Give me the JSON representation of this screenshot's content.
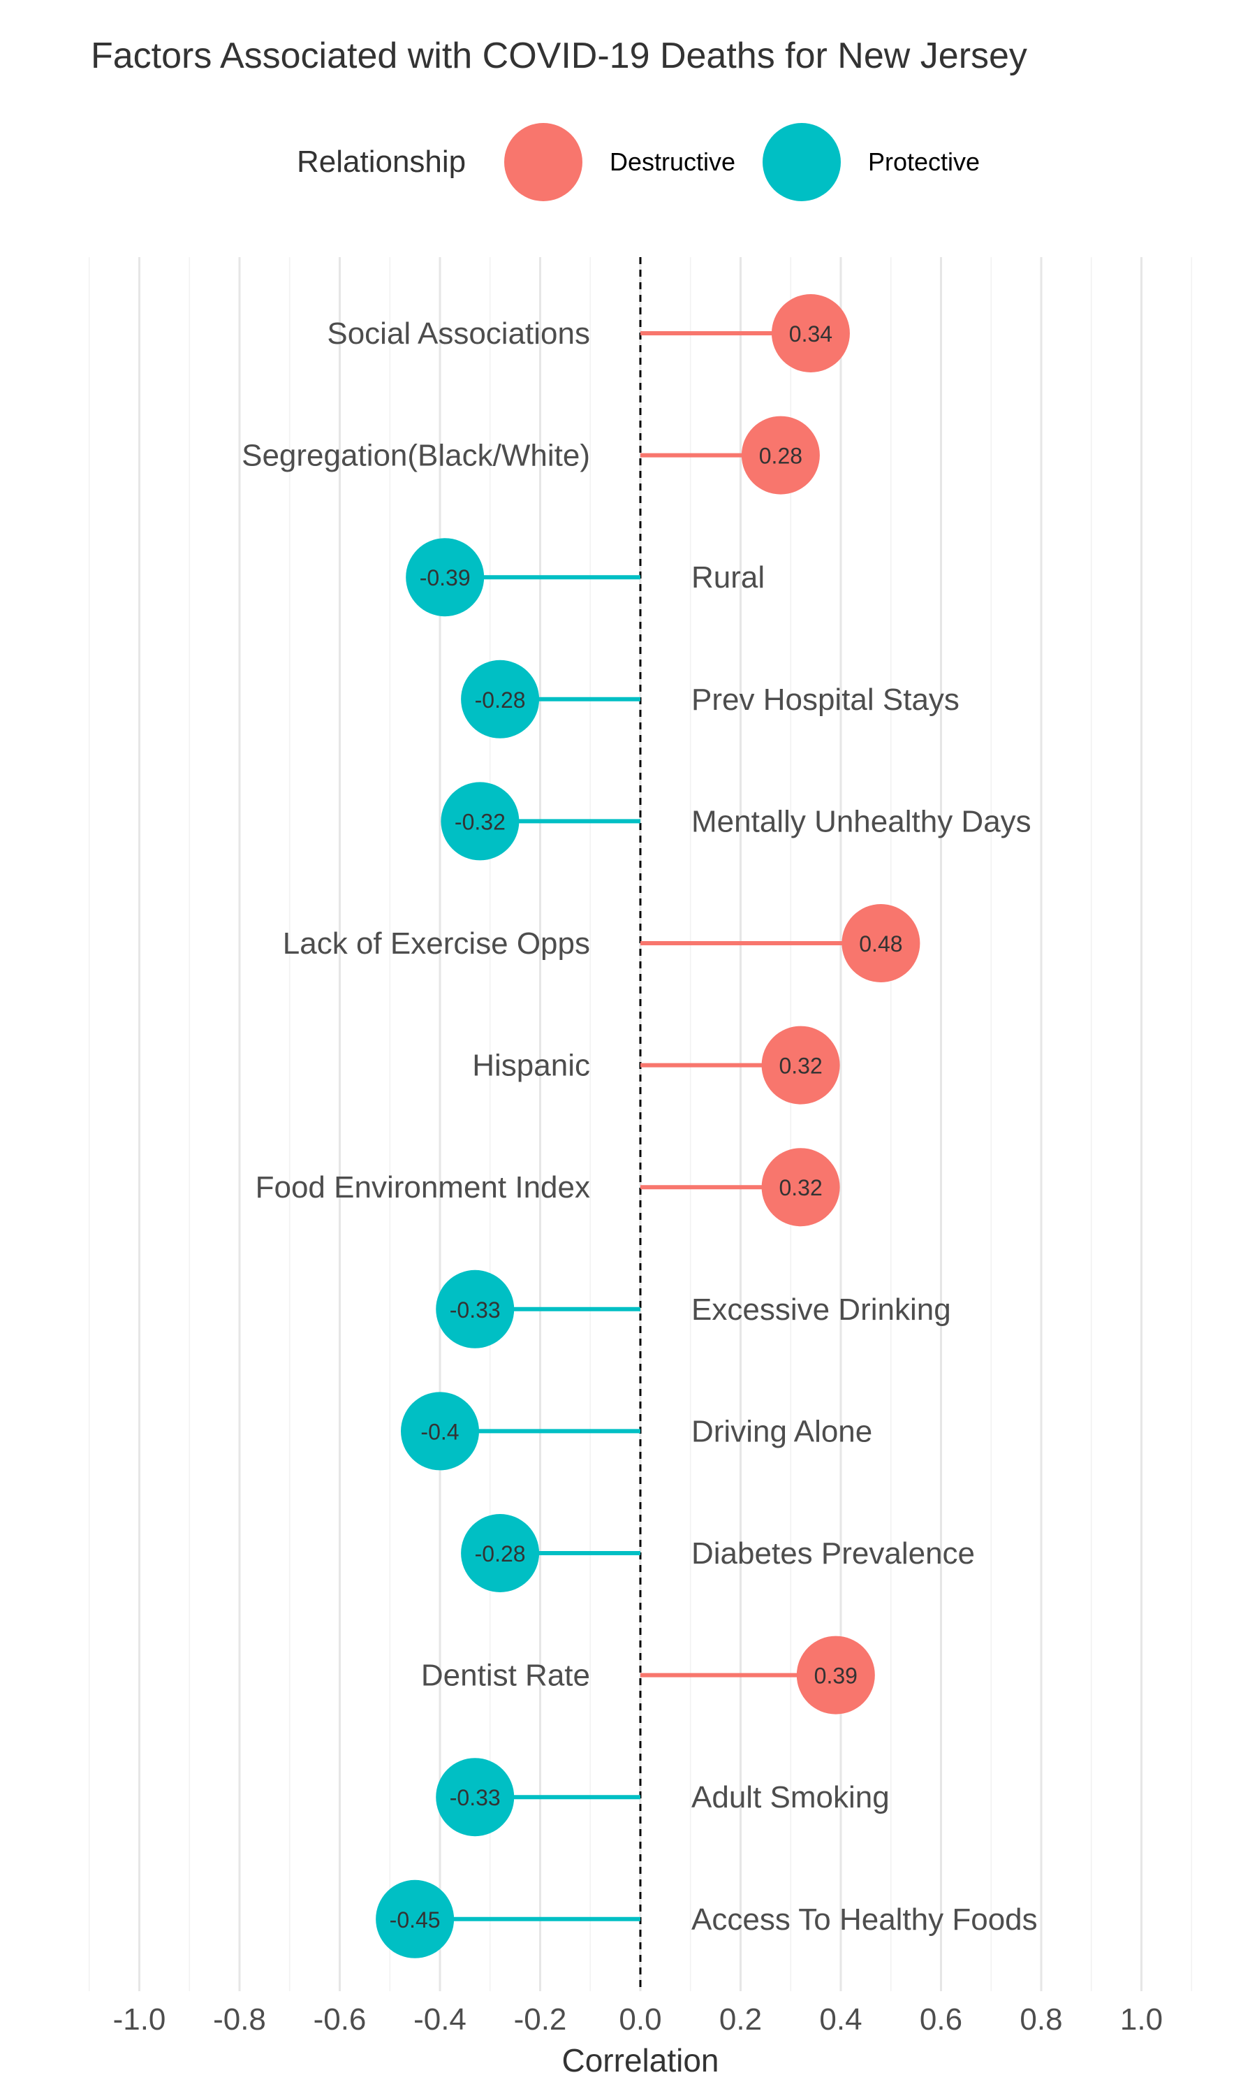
{
  "chart_data": {
    "type": "lollipop",
    "title": "Factors Associated with COVID-19 Deaths for New Jersey",
    "xlabel": "Correlation",
    "ylabel": "",
    "xlim": [
      -1.1,
      1.1
    ],
    "x_ticks": [
      "-1.0",
      "-0.8",
      "-0.6",
      "-0.4",
      "-0.2",
      "0.0",
      "0.2",
      "0.4",
      "0.6",
      "0.8",
      "1.0"
    ],
    "x_tick_values": [
      -1.0,
      -0.8,
      -0.6,
      -0.4,
      -0.2,
      0.0,
      0.2,
      0.4,
      0.6,
      0.8,
      1.0
    ],
    "grid": true,
    "reference_line": {
      "x": 0.0,
      "style": "dashed"
    },
    "legend": {
      "title": "Relationship",
      "position": "top",
      "entries": [
        {
          "name": "Destructive",
          "color": "#F8766D"
        },
        {
          "name": "Protective",
          "color": "#00BFC4"
        }
      ]
    },
    "categories": [
      "Social Associations",
      "Segregation(Black/White)",
      "Rural",
      "Prev Hospital Stays",
      "Mentally Unhealthy Days",
      "Lack of Exercise Opps",
      "Hispanic",
      "Food Environment Index",
      "Excessive Drinking",
      "Driving Alone",
      "Diabetes Prevalence",
      "Dentist Rate",
      "Adult Smoking",
      "Access To Healthy Foods"
    ],
    "values": [
      0.34,
      0.28,
      -0.39,
      -0.28,
      -0.32,
      0.48,
      0.32,
      0.32,
      -0.33,
      -0.4,
      -0.28,
      0.39,
      -0.33,
      -0.45
    ],
    "value_labels": [
      "0.34",
      "0.28",
      "-0.39",
      "-0.28",
      "-0.32",
      "0.48",
      "0.32",
      "0.32",
      "-0.33",
      "-0.4",
      "-0.28",
      "0.39",
      "-0.33",
      "-0.45"
    ],
    "relationship": [
      "Destructive",
      "Destructive",
      "Protective",
      "Protective",
      "Protective",
      "Destructive",
      "Destructive",
      "Destructive",
      "Protective",
      "Protective",
      "Protective",
      "Destructive",
      "Protective",
      "Protective"
    ]
  }
}
